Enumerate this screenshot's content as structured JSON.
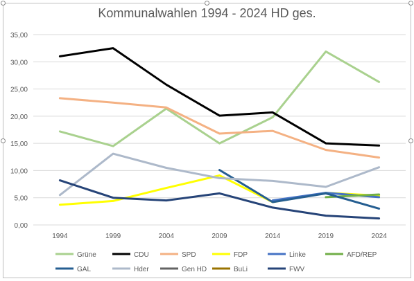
{
  "chart_data": {
    "type": "line",
    "title": "Kommunalwahlen 1994 - 2024 HD ges.",
    "xlabel": "",
    "ylabel": "",
    "x": [
      "1994",
      "1999",
      "2004",
      "2009",
      "2014",
      "2019",
      "2024"
    ],
    "ylim": [
      0,
      35
    ],
    "yticks": [
      "0,00",
      "5,00",
      "10,00",
      "15,00",
      "20,00",
      "25,00",
      "30,00",
      "35,00"
    ],
    "grid": true,
    "legend_position": "bottom",
    "series": [
      {
        "name": "Grüne",
        "color": "#a9d18e",
        "values": [
          17.2,
          14.5,
          21.4,
          15.0,
          19.8,
          31.9,
          26.3
        ]
      },
      {
        "name": "CDU",
        "color": "#000000",
        "values": [
          31.0,
          32.5,
          25.8,
          20.1,
          20.7,
          15.0,
          14.6
        ]
      },
      {
        "name": "SPD",
        "color": "#f4b183",
        "values": [
          23.3,
          22.5,
          21.6,
          16.8,
          17.3,
          13.8,
          12.4
        ]
      },
      {
        "name": "FDP",
        "color": "#ffff00",
        "values": [
          3.7,
          4.4,
          6.8,
          9.1,
          4.2,
          5.9,
          5.4
        ]
      },
      {
        "name": "Linke",
        "color": "#4472c4",
        "values": [
          null,
          null,
          null,
          null,
          4.5,
          5.9,
          5.1
        ]
      },
      {
        "name": "AFD/REP",
        "color": "#70ad47",
        "values": [
          null,
          null,
          null,
          null,
          null,
          5.1,
          5.6
        ]
      },
      {
        "name": "GAL",
        "color": "#255e91",
        "values": [
          null,
          null,
          null,
          10.1,
          4.2,
          5.8,
          3.0
        ]
      },
      {
        "name": "Hder",
        "color": "#adb9ca",
        "values": [
          5.5,
          13.1,
          10.5,
          8.6,
          8.1,
          7.0,
          10.6
        ]
      },
      {
        "name": "Gen HD",
        "color": "#636363",
        "values": [
          null,
          null,
          null,
          null,
          null,
          null,
          null
        ]
      },
      {
        "name": "BuLi",
        "color": "#997300",
        "values": [
          null,
          null,
          null,
          null,
          null,
          null,
          null
        ]
      },
      {
        "name": "FWV",
        "color": "#264478",
        "values": [
          8.2,
          5.0,
          4.5,
          5.8,
          3.2,
          1.7,
          1.2
        ]
      }
    ]
  }
}
